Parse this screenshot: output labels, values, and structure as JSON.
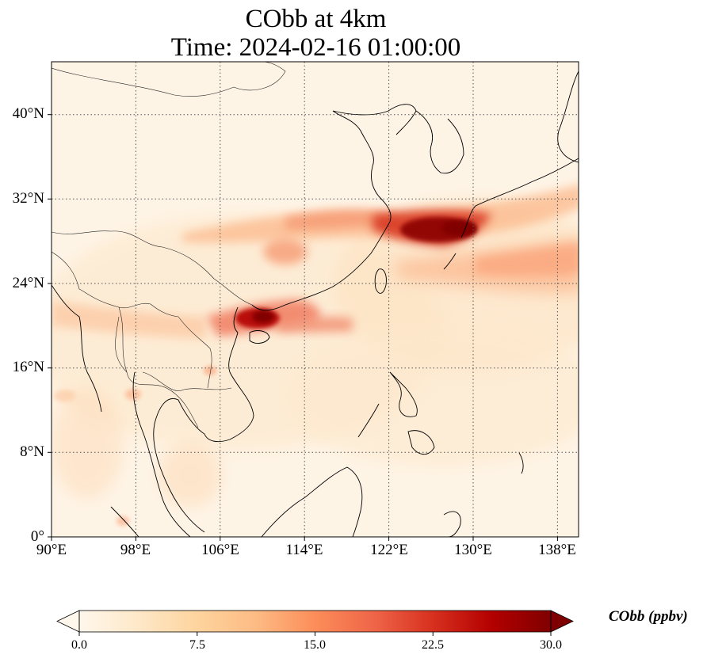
{
  "title": {
    "line1": "CObb at 4km",
    "line2": "Time: 2024-02-16 01:00:00"
  },
  "map": {
    "projection": "PlateCarree",
    "lon_range": [
      90,
      140
    ],
    "lat_range": [
      0,
      45
    ],
    "gridlines": "dotted",
    "colormap": "OrRd",
    "colors": {
      "background": "#fef4e6",
      "coast": "#000000",
      "border": "#222222",
      "grid": "#555555"
    },
    "plumes": [
      {
        "region": "South China / Gulf of Tonkin",
        "center": [
          110.5,
          20.2
        ],
        "level": 30
      },
      {
        "region": "East China Sea",
        "center": [
          126.5,
          29.3
        ],
        "level": 30
      },
      {
        "region": "Band 29-31N",
        "center": [
          115,
          30.2
        ],
        "level": 15
      },
      {
        "region": "Band east of Taiwan",
        "center": [
          132,
          26
        ],
        "level": 10
      }
    ]
  },
  "axes": {
    "y_ticks": [
      "40°N",
      "32°N",
      "24°N",
      "16°N",
      "8°N",
      "0°"
    ],
    "x_ticks": [
      "90°E",
      "98°E",
      "106°E",
      "114°E",
      "122°E",
      "130°E",
      "138°E"
    ]
  },
  "colorbar": {
    "label": "CObb (ppbv)",
    "ticks": [
      "0.0",
      "7.5",
      "15.0",
      "22.5",
      "30.0"
    ],
    "min": 0,
    "max": 30,
    "extend": "both",
    "stops": [
      "#fff7ec",
      "#fee8c8",
      "#fdd49e",
      "#fdbb84",
      "#fc8d59",
      "#ef6548",
      "#d7301f",
      "#b30000",
      "#7f0000"
    ]
  }
}
